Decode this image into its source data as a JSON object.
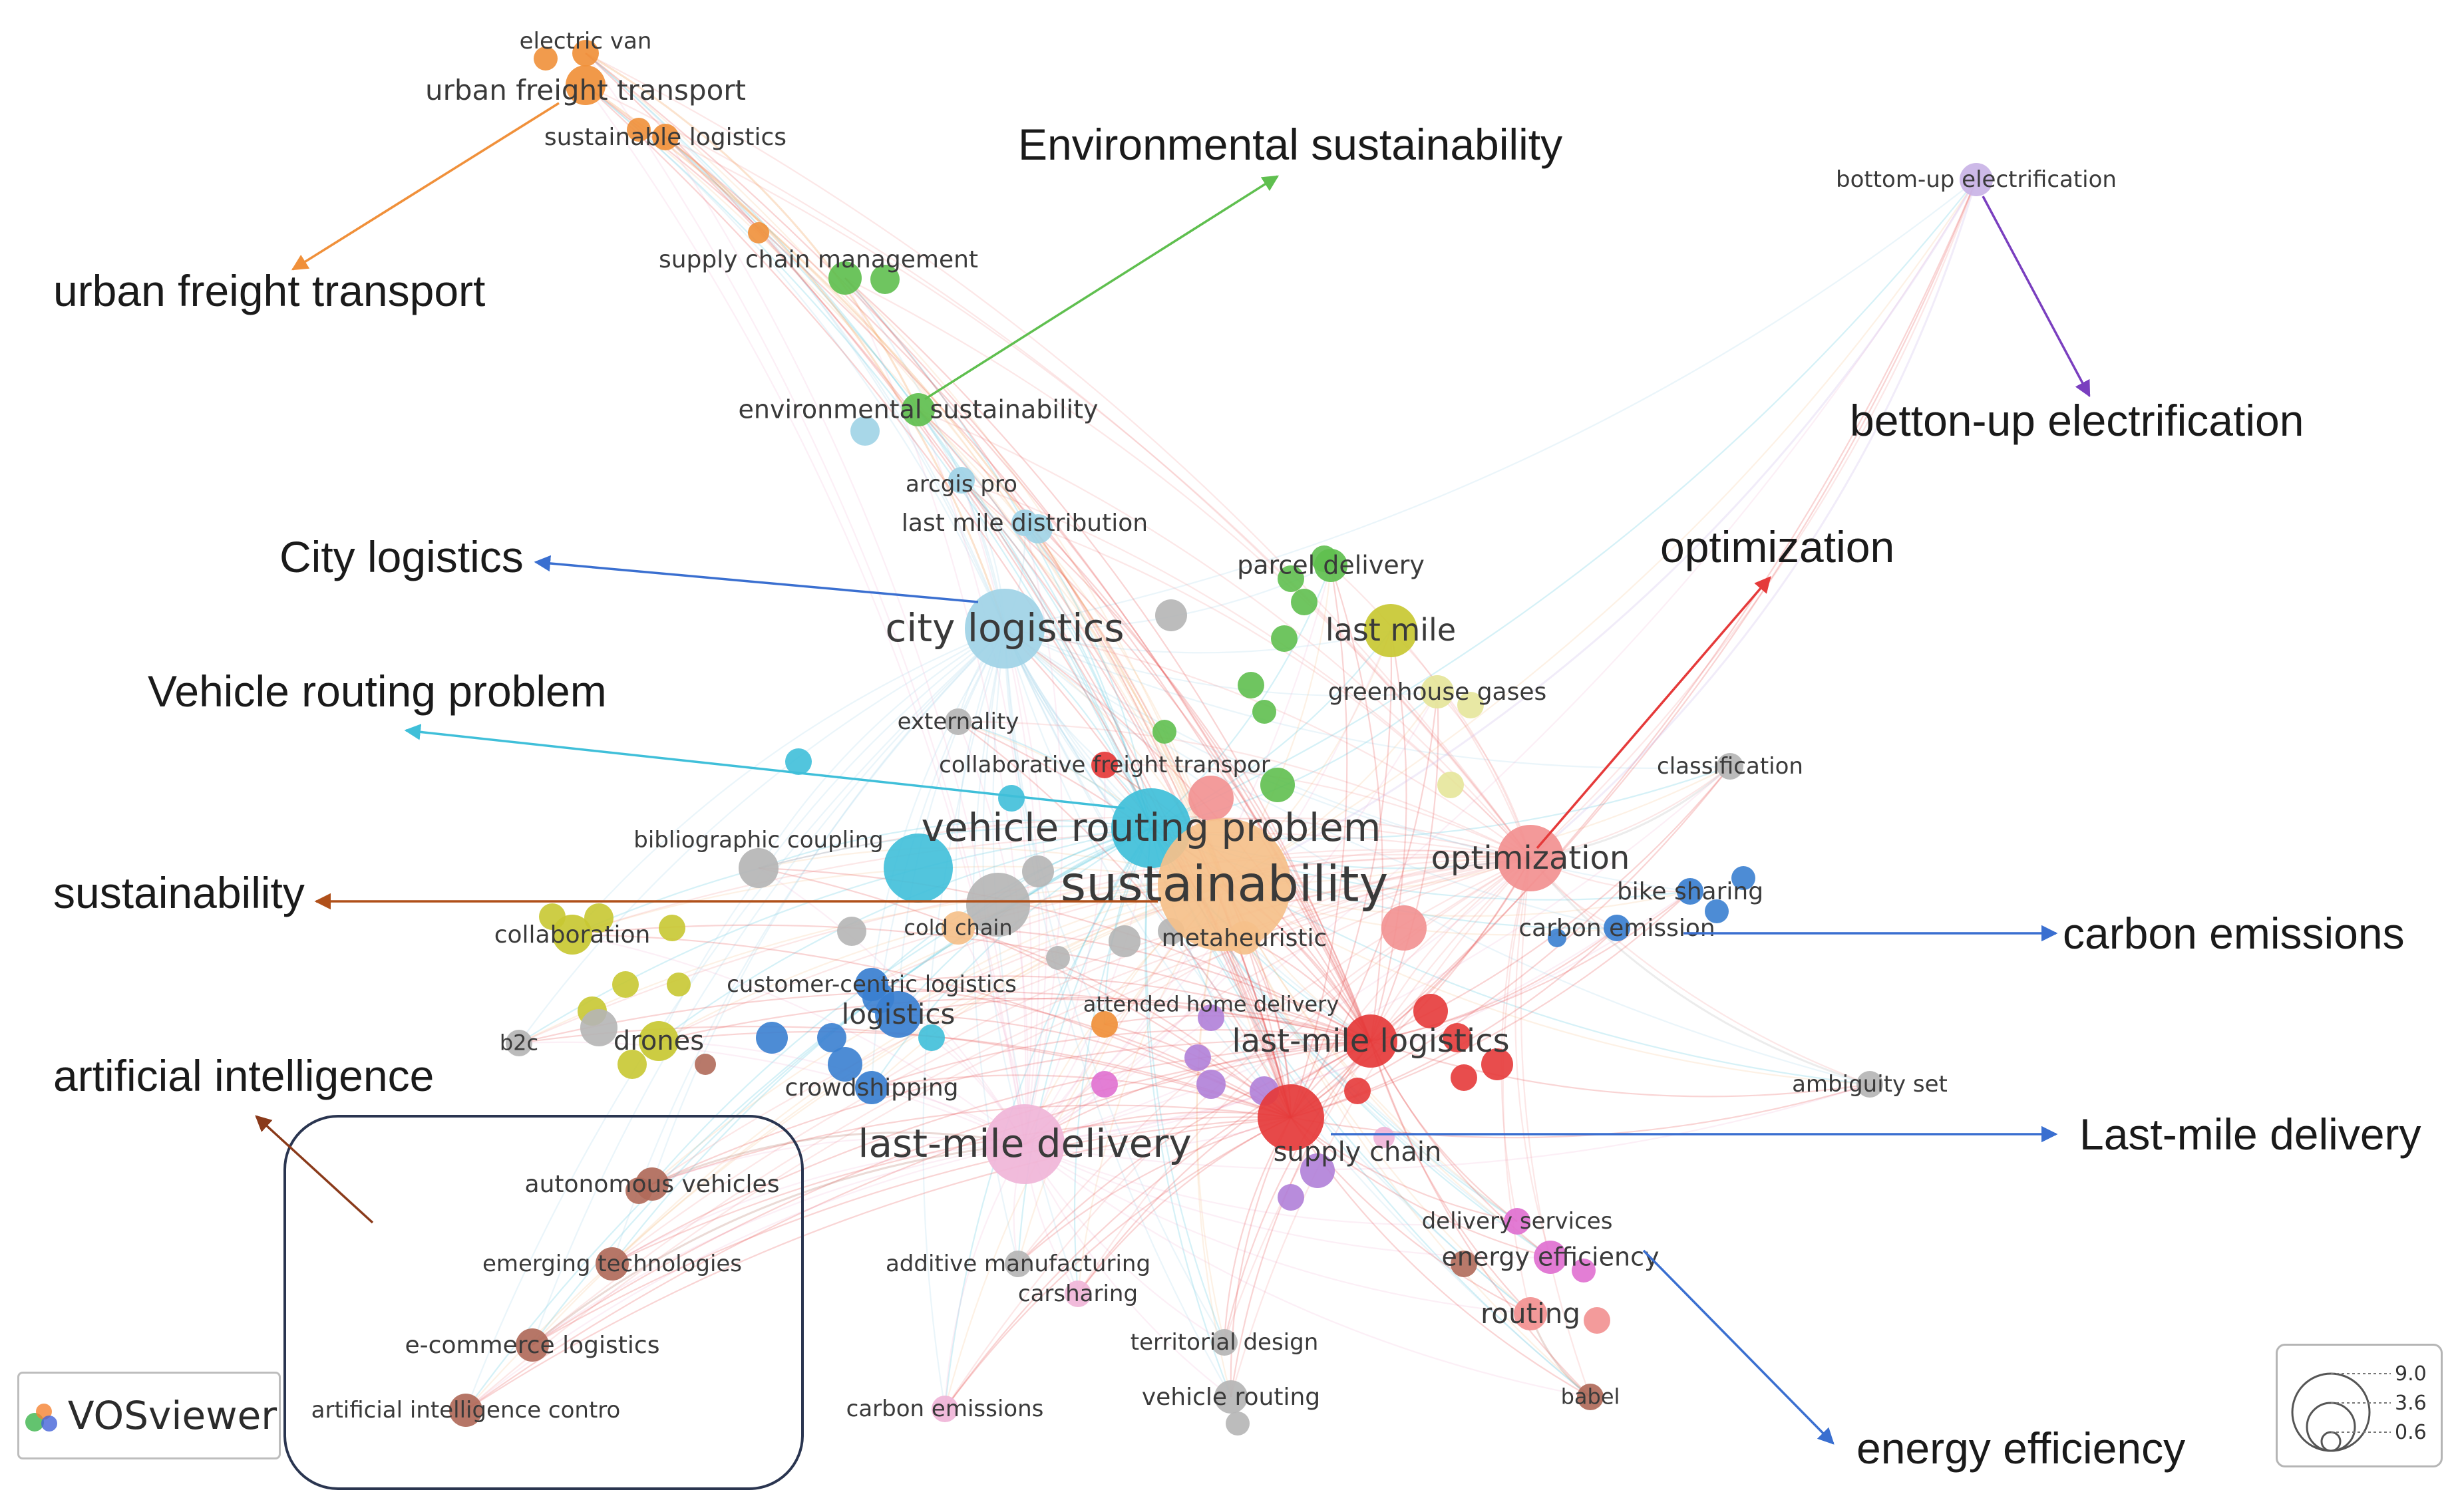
{
  "brand": {
    "name": "VOSviewer"
  },
  "legend": {
    "values": [
      "9.0",
      "3.6",
      "0.6"
    ]
  },
  "colors": {
    "orange": "#f0903a",
    "green": "#5fbf4f",
    "lightblue": "#9fd3e6",
    "cyan": "#3fbfd9",
    "blue": "#3a7fd0",
    "yellow": "#c8c832",
    "red": "#e53a3a",
    "salmon": "#f29090",
    "grey": "#b5b5b5",
    "purple": "#b07fd8",
    "pink": "#f0b5d8",
    "brown": "#b06a5a",
    "paleorange": "#f5c08a",
    "paleyellow": "#e5e59a",
    "lightpurple": "#c9b3e6",
    "magenta": "#e070d0"
  },
  "nodes": [
    {
      "id": "electric-van",
      "label": "electric van",
      "color": "orange",
      "size": 1
    },
    {
      "id": "urban-freight-transport",
      "label": "urban freight transport",
      "color": "orange",
      "size": 2
    },
    {
      "id": "sustainable-logistics",
      "label": "sustainable logistics",
      "color": "orange",
      "size": 1
    },
    {
      "id": "supply-chain-management",
      "label": "supply chain management",
      "color": "green",
      "size": 1.5
    },
    {
      "id": "environmental-sustainability",
      "label": "environmental sustainability",
      "color": "green",
      "size": 1.5
    },
    {
      "id": "bottom-up-electrification",
      "label": "bottom-up electrification",
      "color": "lightpurple",
      "size": 1.5
    },
    {
      "id": "arcgis-pro",
      "label": "arcgis pro",
      "color": "lightblue",
      "size": 1
    },
    {
      "id": "last-mile-distribution",
      "label": "last mile distribution",
      "color": "lightblue",
      "size": 1
    },
    {
      "id": "parcel-delivery",
      "label": "parcel delivery",
      "color": "green",
      "size": 1.5
    },
    {
      "id": "city-logistics",
      "label": "city logistics",
      "color": "lightblue",
      "size": 5
    },
    {
      "id": "last-mile",
      "label": "last mile",
      "color": "yellow",
      "size": 3
    },
    {
      "id": "greenhouse-gases",
      "label": "greenhouse gases",
      "color": "paleyellow",
      "size": 1.5
    },
    {
      "id": "externality",
      "label": "externality",
      "color": "grey",
      "size": 1
    },
    {
      "id": "collaborative-freight-transport",
      "label": "collaborative freight transpor",
      "color": "red",
      "size": 1
    },
    {
      "id": "classification",
      "label": "classification",
      "color": "grey",
      "size": 1
    },
    {
      "id": "bibliographic-coupling",
      "label": "bibliographic coupling",
      "color": "grey",
      "size": 2
    },
    {
      "id": "vehicle-routing-problem",
      "label": "vehicle routing problem",
      "color": "cyan",
      "size": 5
    },
    {
      "id": "sustainability",
      "label": "sustainability",
      "color": "paleorange",
      "size": 9
    },
    {
      "id": "optimization",
      "label": "optimization",
      "color": "salmon",
      "size": 4
    },
    {
      "id": "bike-sharing",
      "label": "bike sharing",
      "color": "blue",
      "size": 1
    },
    {
      "id": "carbon-emission",
      "label": "carbon emission",
      "color": "blue",
      "size": 1
    },
    {
      "id": "collaboration",
      "label": "collaboration",
      "color": "yellow",
      "size": 2
    },
    {
      "id": "cold-chain",
      "label": "cold chain",
      "color": "paleorange",
      "size": 1.5
    },
    {
      "id": "metaheuristic",
      "label": "metaheuristic",
      "color": "paleorange",
      "size": 1.5
    },
    {
      "id": "customer-centric-logistics",
      "label": "customer-centric logistics",
      "color": "blue",
      "size": 1.5
    },
    {
      "id": "attended-home-delivery",
      "label": "attended home delivery",
      "color": "orange",
      "size": 1
    },
    {
      "id": "logistics",
      "label": "logistics",
      "color": "blue",
      "size": 2.5
    },
    {
      "id": "b2c",
      "label": "b2c",
      "color": "grey",
      "size": 1
    },
    {
      "id": "drones",
      "label": "drones",
      "color": "yellow",
      "size": 2
    },
    {
      "id": "last-mile-logistics",
      "label": "last-mile logistics",
      "color": "red",
      "size": 3
    },
    {
      "id": "crowdshipping",
      "label": "crowdshipping",
      "color": "blue",
      "size": 1.5
    },
    {
      "id": "ambiguity-set",
      "label": "ambiguity set",
      "color": "grey",
      "size": 1
    },
    {
      "id": "last-mile-delivery",
      "label": "last-mile delivery",
      "color": "pink",
      "size": 5
    },
    {
      "id": "supply-chain",
      "label": "supply chain",
      "color": "red",
      "size": 4
    },
    {
      "id": "autonomous-vehicles",
      "label": "autonomous vehicles",
      "color": "brown",
      "size": 1.5
    },
    {
      "id": "delivery-services",
      "label": "delivery services",
      "color": "magenta",
      "size": 1
    },
    {
      "id": "energy-efficiency",
      "label": "energy efficiency",
      "color": "magenta",
      "size": 1.5
    },
    {
      "id": "emerging-technologies",
      "label": "emerging technologies",
      "color": "brown",
      "size": 1.5
    },
    {
      "id": "additive-manufacturing",
      "label": "additive manufacturing",
      "color": "grey",
      "size": 1
    },
    {
      "id": "carsharing",
      "label": "carsharing",
      "color": "pink",
      "size": 1
    },
    {
      "id": "routing",
      "label": "routing",
      "color": "salmon",
      "size": 1.5
    },
    {
      "id": "territorial-design",
      "label": "territorial design",
      "color": "grey",
      "size": 1
    },
    {
      "id": "e-commerce-logistics",
      "label": "e-commerce logistics",
      "color": "brown",
      "size": 1.5
    },
    {
      "id": "babel",
      "label": "babel",
      "color": "brown",
      "size": 1
    },
    {
      "id": "vehicle-routing",
      "label": "vehicle routing",
      "color": "grey",
      "size": 1.5
    },
    {
      "id": "artificial-intelligence-control",
      "label": "artificial intelligence contro",
      "color": "brown",
      "size": 1.5
    },
    {
      "id": "carbon-emissions",
      "label": "carbon emissions",
      "color": "pink",
      "size": 1
    }
  ],
  "callouts": [
    {
      "id": "urban-freight-transport",
      "label": "urban freight transport"
    },
    {
      "id": "environmental-sustainability",
      "label": "Environmental sustainability"
    },
    {
      "id": "betton-up-electrification",
      "label": "betton-up electrification"
    },
    {
      "id": "city-logistics",
      "label": "City logistics"
    },
    {
      "id": "optimization",
      "label": "optimization"
    },
    {
      "id": "vehicle-routing-problem",
      "label": "Vehicle routing problem"
    },
    {
      "id": "sustainability",
      "label": "sustainability"
    },
    {
      "id": "carbon-emissions",
      "label": "carbon emissions"
    },
    {
      "id": "artificial-intelligence",
      "label": "artificial intelligence"
    },
    {
      "id": "last-mile-delivery",
      "label": "Last-mile delivery"
    },
    {
      "id": "energy-efficiency",
      "label": "energy efficiency"
    }
  ]
}
